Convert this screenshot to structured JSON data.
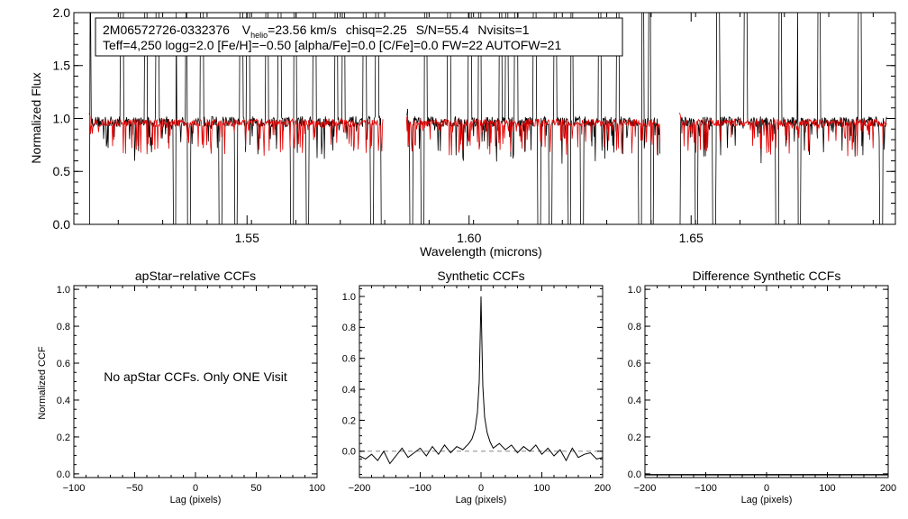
{
  "chart_data": [
    {
      "type": "line",
      "id": "spectrum",
      "star_id": "2M06572726-0332376",
      "vhelio_label": "V",
      "vhelio_sub": "helio",
      "vhelio_value": "=23.56 km/s",
      "chisq_text": "chisq=2.25",
      "sn_text": "S/N=55.4",
      "nvisits_text": "Nvisits=1",
      "param_line": "Teff=4,250 logg=2.0 [Fe/H]=−0.50 [alpha/Fe]=0.0 [C/Fe]=0.0 FW=22 AUTOFW=21",
      "xlabel": "Wavelength (microns)",
      "ylabel": "Normalized Flux",
      "xlim": [
        1.511,
        1.696
      ],
      "ylim": [
        0.0,
        2.0
      ],
      "xticks": [
        1.55,
        1.6,
        1.65
      ],
      "xtick_labels": [
        "1.55",
        "1.60",
        "1.65"
      ],
      "yticks": [
        0.0,
        0.5,
        1.0,
        1.5,
        2.0
      ],
      "ytick_labels": [
        "0.0",
        "0.5",
        "1.0",
        "1.5",
        "2.0"
      ],
      "chip_ranges": [
        [
          1.5144,
          1.5806
        ],
        [
          1.5859,
          1.643
        ],
        [
          1.6474,
          1.694
        ]
      ],
      "series": [
        {
          "name": "observed",
          "color": "#000000",
          "continuum": 0.97
        },
        {
          "name": "synthetic",
          "color": "#e00000",
          "continuum": 0.96
        }
      ],
      "spikes_up": [
        1.5145,
        1.5218,
        1.5272,
        1.5298,
        1.5338,
        1.5365,
        1.5398,
        1.5441,
        1.5487,
        1.5502,
        1.5545,
        1.5573,
        1.5608,
        1.5652,
        1.5701,
        1.5717,
        1.5765,
        1.5793,
        1.5902,
        1.5955,
        1.6002,
        1.6024,
        1.6071,
        1.6085,
        1.6106,
        1.6148,
        1.6194,
        1.623,
        1.6255,
        1.6294,
        1.6335,
        1.639,
        1.6408,
        1.6561,
        1.6623,
        1.67,
        1.6743,
        1.6788,
        1.688
      ],
      "spikes_down": [
        1.5143,
        1.5337,
        1.5369,
        1.544,
        1.5475,
        1.5601,
        1.5636,
        1.5781,
        1.5805,
        1.587,
        1.5895,
        1.6158,
        1.6183,
        1.6226,
        1.6254,
        1.6385,
        1.6412,
        1.6472,
        1.6512,
        1.6552,
        1.6694,
        1.6744,
        1.6928
      ],
      "gaps": [
        1.583,
        1.6452
      ]
    },
    {
      "type": "line",
      "id": "apstar-ccf",
      "title": "apStar−relative CCFs",
      "xlabel": "Lag (pixels)",
      "ylabel": "Normalized CCF",
      "xlim": [
        -100,
        100
      ],
      "ylim": [
        -0.02,
        1.02
      ],
      "xticks": [
        -100,
        -50,
        0,
        50,
        100
      ],
      "xtick_labels": [
        "−100",
        "−50",
        "0",
        "50",
        "100"
      ],
      "yticks": [
        0.0,
        0.2,
        0.4,
        0.6,
        0.8,
        1.0
      ],
      "ytick_labels": [
        "0.0",
        "0.2",
        "0.4",
        "0.6",
        "0.8",
        "1.0"
      ],
      "message": "No apStar CCFs.  Only ONE Visit",
      "series": []
    },
    {
      "type": "line",
      "id": "synthetic-ccf",
      "title": "Synthetic CCFs",
      "xlabel": "Lag (pixels)",
      "ylabel": "",
      "xlim": [
        -200,
        200
      ],
      "ylim": [
        -0.17,
        1.07
      ],
      "xticks": [
        -200,
        -100,
        0,
        100,
        200
      ],
      "xtick_labels": [
        "−200",
        "−100",
        "0",
        "100",
        "200"
      ],
      "yticks": [
        0.0,
        0.2,
        0.4,
        0.6,
        0.8,
        1.0
      ],
      "ytick_labels": [
        "0.0",
        "0.2",
        "0.4",
        "0.6",
        "0.8",
        "1.0"
      ],
      "zero_line": 0.0,
      "series": [
        {
          "name": "ccf",
          "color": "#000000",
          "x": [
            -200,
            -190,
            -180,
            -170,
            -160,
            -150,
            -140,
            -130,
            -120,
            -110,
            -100,
            -90,
            -80,
            -70,
            -60,
            -50,
            -40,
            -30,
            -20,
            -15,
            -10,
            -6,
            -3,
            -1,
            0,
            1,
            3,
            6,
            10,
            15,
            20,
            30,
            40,
            50,
            60,
            70,
            80,
            90,
            100,
            110,
            120,
            130,
            140,
            150,
            160,
            170,
            180,
            190,
            200
          ],
          "y": [
            -0.03,
            -0.05,
            -0.02,
            -0.06,
            0.0,
            -0.08,
            -0.03,
            0.02,
            -0.04,
            -0.01,
            0.02,
            -0.03,
            0.03,
            -0.02,
            0.04,
            -0.01,
            0.03,
            0.01,
            0.05,
            0.08,
            0.14,
            0.25,
            0.45,
            0.8,
            1.0,
            0.78,
            0.42,
            0.22,
            0.12,
            0.06,
            0.02,
            0.05,
            0.01,
            0.04,
            -0.01,
            0.03,
            0.0,
            0.04,
            -0.02,
            0.02,
            -0.03,
            0.01,
            -0.06,
            0.02,
            -0.04,
            -0.02,
            -0.01,
            -0.05,
            -0.04
          ]
        }
      ]
    },
    {
      "type": "line",
      "id": "difference-ccf",
      "title": "Difference Synthetic CCFs",
      "xlabel": "Lag (pixels)",
      "ylabel": "",
      "xlim": [
        -200,
        200
      ],
      "ylim": [
        -0.02,
        1.02
      ],
      "xticks": [
        -200,
        -100,
        0,
        100,
        200
      ],
      "xtick_labels": [
        "−200",
        "−100",
        "0",
        "100",
        "200"
      ],
      "yticks": [
        0.0,
        0.2,
        0.4,
        0.6,
        0.8,
        1.0
      ],
      "ytick_labels": [
        "0.0",
        "0.2",
        "0.4",
        "0.6",
        "0.8",
        "1.0"
      ],
      "series": []
    }
  ]
}
